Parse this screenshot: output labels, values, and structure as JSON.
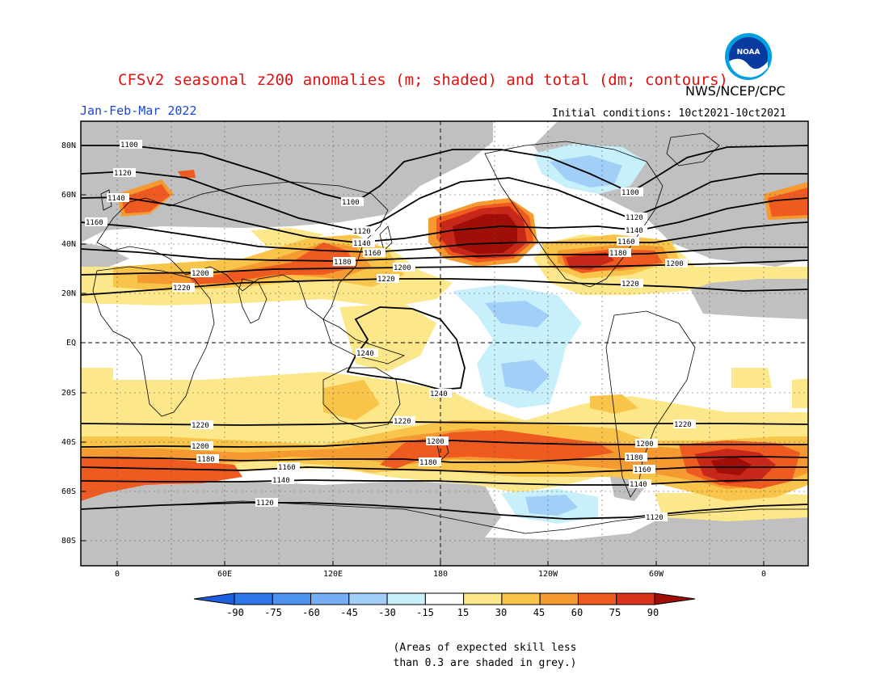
{
  "header": {
    "title": "CFSv2 seasonal z200 anomalies (m; shaded) and total (dm; contours)",
    "period": "Jan-Feb-Mar 2022",
    "agency": "NWS/NCEP/CPC",
    "initial_conditions": "Initial conditions: 10ct2021-10ct2021",
    "logo_text": "NOAA"
  },
  "map": {
    "lat_labels": [
      "80N",
      "60N",
      "40N",
      "20N",
      "EQ",
      "20S",
      "40S",
      "60S",
      "80S"
    ],
    "lon_labels": [
      "0",
      "60E",
      "120E",
      "180",
      "120W",
      "60W",
      "0"
    ],
    "contour_labels": [
      "1100",
      "1120",
      "1140",
      "1160",
      "1180",
      "1200",
      "1220",
      "1240"
    ],
    "colors": {
      "grey_mask": "#c0c0c0",
      "land_outline": "#000000",
      "contour": "#000000"
    }
  },
  "colorbar": {
    "ticks": [
      "-90",
      "-75",
      "-60",
      "-45",
      "-30",
      "-15",
      "15",
      "30",
      "45",
      "60",
      "75",
      "90"
    ],
    "colors": [
      "#1e5fe0",
      "#2e78ea",
      "#4f93f0",
      "#75aef4",
      "#a2cff8",
      "#c8f0fa",
      "#ffffff",
      "#fce88a",
      "#f9c44a",
      "#f49a30",
      "#ef5a20",
      "#d8321a",
      "#a00e08"
    ]
  },
  "note": {
    "line1": "(Areas of expected skill less",
    "line2": "than 0.3 are shaded in grey.)"
  }
}
